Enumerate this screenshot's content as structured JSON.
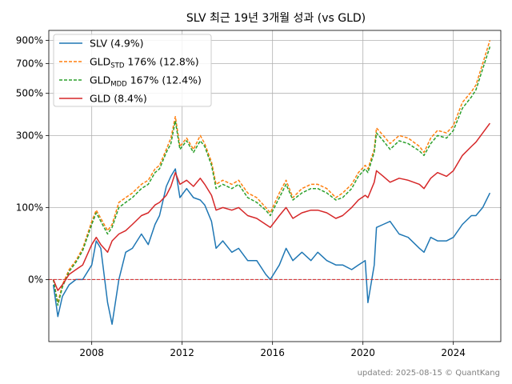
{
  "chart_data": {
    "type": "line",
    "title": "SLV 최근 19년 3개월 성과 (vs GLD)",
    "xlabel": "",
    "ylabel": "",
    "y_scale": "log(1+r)",
    "xlim": [
      2006.1,
      2026.1
    ],
    "ylim": [
      -0.45,
      10.0
    ],
    "x_ticks": [
      2008,
      2012,
      2016,
      2020,
      2024
    ],
    "y_ticks": [
      {
        "value": 0,
        "label": "0%"
      },
      {
        "value": 1,
        "label": "100%"
      },
      {
        "value": 3,
        "label": "300%"
      },
      {
        "value": 5,
        "label": "500%"
      },
      {
        "value": 7,
        "label": "700%"
      },
      {
        "value": 9,
        "label": "900%"
      }
    ],
    "grid": true,
    "legend_position": "top-left",
    "reference_line": {
      "y": 0,
      "color": "#d62728",
      "style": "dashed"
    },
    "footer": "updated: 2025-08-15 © QuantKang",
    "series": [
      {
        "name": "SLV (4.9%)",
        "color": "#1f77b4",
        "style": "solid",
        "x": [
          2006.3,
          2006.5,
          2006.7,
          2007.0,
          2007.3,
          2007.6,
          2008.0,
          2008.2,
          2008.4,
          2008.7,
          2008.9,
          2009.2,
          2009.5,
          2009.8,
          2010.2,
          2010.5,
          2010.8,
          2011.0,
          2011.3,
          2011.5,
          2011.7,
          2011.9,
          2012.2,
          2012.5,
          2012.8,
          2013.0,
          2013.3,
          2013.5,
          2013.8,
          2014.2,
          2014.5,
          2014.9,
          2015.3,
          2015.7,
          2015.9,
          2016.3,
          2016.6,
          2016.9,
          2017.3,
          2017.7,
          2018.0,
          2018.4,
          2018.8,
          2019.1,
          2019.5,
          2019.8,
          2020.1,
          2020.22,
          2020.5,
          2020.6,
          2020.9,
          2021.2,
          2021.6,
          2022.0,
          2022.5,
          2022.7,
          2023.0,
          2023.3,
          2023.7,
          2024.0,
          2024.4,
          2024.8,
          2025.0,
          2025.3,
          2025.62
        ],
        "values": [
          -0.05,
          -0.3,
          -0.15,
          -0.05,
          0.0,
          0.0,
          0.15,
          0.45,
          0.35,
          -0.2,
          -0.35,
          0.0,
          0.3,
          0.35,
          0.55,
          0.4,
          0.7,
          0.85,
          1.45,
          1.7,
          1.9,
          1.2,
          1.4,
          1.2,
          1.15,
          1.05,
          0.75,
          0.35,
          0.45,
          0.3,
          0.35,
          0.2,
          0.2,
          0.05,
          0.0,
          0.15,
          0.35,
          0.2,
          0.3,
          0.2,
          0.3,
          0.2,
          0.15,
          0.15,
          0.1,
          0.15,
          0.2,
          -0.2,
          0.15,
          0.65,
          0.7,
          0.75,
          0.55,
          0.5,
          0.35,
          0.3,
          0.5,
          0.45,
          0.45,
          0.5,
          0.7,
          0.85,
          0.85,
          1.0,
          1.3
        ]
      },
      {
        "name": "GLDSTD 176% (12.8%)",
        "legend_main": "GLD",
        "legend_sub": "STD",
        "legend_rest": " 176% (12.8%)",
        "color": "#ff7f0e",
        "style": "dashed",
        "x": [
          2006.3,
          2006.5,
          2006.7,
          2007.0,
          2007.3,
          2007.6,
          2008.0,
          2008.2,
          2008.4,
          2008.7,
          2008.9,
          2009.2,
          2009.5,
          2009.8,
          2010.2,
          2010.5,
          2010.8,
          2011.0,
          2011.3,
          2011.5,
          2011.7,
          2011.9,
          2012.2,
          2012.5,
          2012.8,
          2013.0,
          2013.3,
          2013.5,
          2013.8,
          2014.2,
          2014.5,
          2014.9,
          2015.3,
          2015.7,
          2015.9,
          2016.3,
          2016.6,
          2016.9,
          2017.3,
          2017.7,
          2018.0,
          2018.4,
          2018.8,
          2019.1,
          2019.5,
          2019.8,
          2020.1,
          2020.22,
          2020.5,
          2020.6,
          2020.9,
          2021.2,
          2021.6,
          2022.0,
          2022.5,
          2022.7,
          2023.0,
          2023.3,
          2023.7,
          2024.0,
          2024.4,
          2024.8,
          2025.0,
          2025.3,
          2025.62
        ],
        "values": [
          0.0,
          -0.2,
          -0.05,
          0.1,
          0.2,
          0.35,
          0.75,
          0.95,
          0.8,
          0.6,
          0.7,
          1.1,
          1.2,
          1.3,
          1.5,
          1.6,
          1.9,
          2.0,
          2.5,
          2.9,
          3.8,
          2.6,
          2.9,
          2.5,
          3.0,
          2.7,
          2.1,
          1.5,
          1.6,
          1.5,
          1.6,
          1.3,
          1.2,
          1.0,
          0.9,
          1.3,
          1.6,
          1.2,
          1.4,
          1.5,
          1.5,
          1.4,
          1.2,
          1.3,
          1.5,
          1.8,
          2.0,
          1.9,
          2.5,
          3.3,
          3.0,
          2.7,
          3.0,
          2.9,
          2.6,
          2.4,
          2.9,
          3.2,
          3.1,
          3.4,
          4.5,
          5.1,
          5.5,
          7.0,
          9.0
        ]
      },
      {
        "name": "GLDMDD 167% (12.4%)",
        "legend_main": "GLD",
        "legend_sub": "MDD",
        "legend_rest": " 167% (12.4%)",
        "color": "#2ca02c",
        "style": "dashed",
        "x": [
          2006.3,
          2006.5,
          2006.7,
          2007.0,
          2007.3,
          2007.6,
          2008.0,
          2008.2,
          2008.4,
          2008.7,
          2008.9,
          2009.2,
          2009.5,
          2009.8,
          2010.2,
          2010.5,
          2010.8,
          2011.0,
          2011.3,
          2011.5,
          2011.7,
          2011.9,
          2012.2,
          2012.5,
          2012.8,
          2013.0,
          2013.3,
          2013.5,
          2013.8,
          2014.2,
          2014.5,
          2014.9,
          2015.3,
          2015.7,
          2015.9,
          2016.3,
          2016.6,
          2016.9,
          2017.3,
          2017.7,
          2018.0,
          2018.4,
          2018.8,
          2019.1,
          2019.5,
          2019.8,
          2020.1,
          2020.22,
          2020.5,
          2020.6,
          2020.9,
          2021.2,
          2021.6,
          2022.0,
          2022.5,
          2022.7,
          2023.0,
          2023.3,
          2023.7,
          2024.0,
          2024.4,
          2024.8,
          2025.0,
          2025.3,
          2025.62
        ],
        "values": [
          0.0,
          -0.22,
          -0.07,
          0.08,
          0.18,
          0.32,
          0.7,
          0.9,
          0.75,
          0.55,
          0.65,
          1.0,
          1.1,
          1.2,
          1.4,
          1.5,
          1.8,
          1.9,
          2.4,
          2.7,
          3.6,
          2.5,
          2.8,
          2.4,
          2.8,
          2.6,
          2.0,
          1.4,
          1.5,
          1.4,
          1.5,
          1.2,
          1.1,
          0.95,
          0.85,
          1.2,
          1.5,
          1.15,
          1.3,
          1.4,
          1.4,
          1.3,
          1.15,
          1.2,
          1.4,
          1.7,
          1.9,
          1.8,
          2.4,
          3.1,
          2.8,
          2.5,
          2.8,
          2.7,
          2.45,
          2.3,
          2.7,
          3.0,
          2.9,
          3.2,
          4.2,
          4.8,
          5.2,
          6.6,
          8.4
        ]
      },
      {
        "name": "GLD (8.4%)",
        "color": "#d62728",
        "style": "solid",
        "x": [
          2006.3,
          2006.5,
          2006.7,
          2007.0,
          2007.3,
          2007.6,
          2008.0,
          2008.2,
          2008.4,
          2008.7,
          2008.9,
          2009.2,
          2009.5,
          2009.8,
          2010.2,
          2010.5,
          2010.8,
          2011.0,
          2011.3,
          2011.5,
          2011.7,
          2011.9,
          2012.2,
          2012.5,
          2012.8,
          2013.0,
          2013.3,
          2013.5,
          2013.8,
          2014.2,
          2014.5,
          2014.9,
          2015.3,
          2015.7,
          2015.9,
          2016.3,
          2016.6,
          2016.9,
          2017.3,
          2017.7,
          2018.0,
          2018.4,
          2018.8,
          2019.1,
          2019.5,
          2019.8,
          2020.1,
          2020.22,
          2020.5,
          2020.6,
          2020.9,
          2021.2,
          2021.6,
          2022.0,
          2022.5,
          2022.7,
          2023.0,
          2023.3,
          2023.7,
          2024.0,
          2024.4,
          2024.8,
          2025.0,
          2025.3,
          2025.62
        ],
        "values": [
          0.0,
          -0.1,
          -0.05,
          0.05,
          0.1,
          0.15,
          0.4,
          0.5,
          0.4,
          0.3,
          0.45,
          0.55,
          0.6,
          0.7,
          0.85,
          0.9,
          1.05,
          1.1,
          1.25,
          1.45,
          1.8,
          1.5,
          1.6,
          1.45,
          1.65,
          1.5,
          1.25,
          0.95,
          1.0,
          0.95,
          1.0,
          0.85,
          0.8,
          0.7,
          0.65,
          0.85,
          1.0,
          0.8,
          0.9,
          0.95,
          0.95,
          0.9,
          0.8,
          0.85,
          1.0,
          1.15,
          1.25,
          1.2,
          1.55,
          1.85,
          1.7,
          1.55,
          1.65,
          1.6,
          1.5,
          1.4,
          1.65,
          1.8,
          1.7,
          1.85,
          2.3,
          2.6,
          2.75,
          3.1,
          3.5
        ]
      }
    ]
  }
}
